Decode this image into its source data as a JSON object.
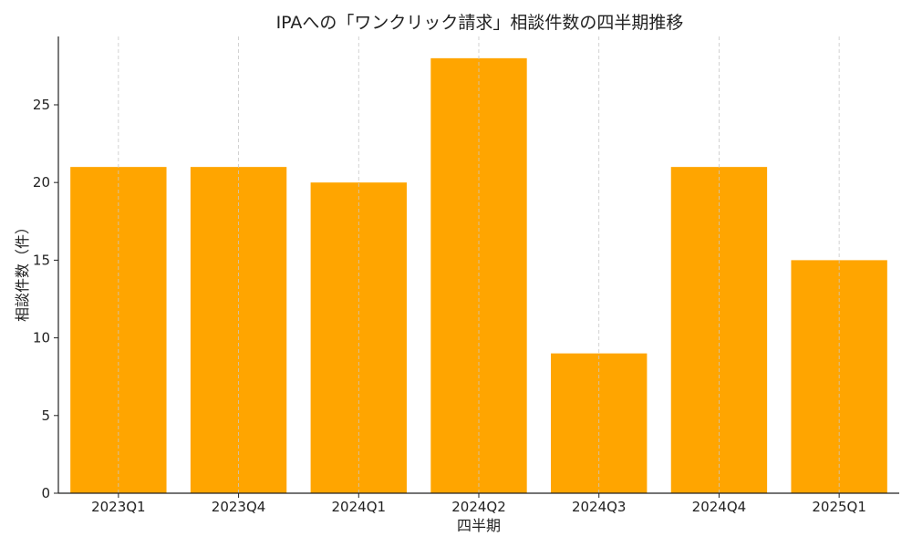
{
  "chart_data": {
    "type": "bar",
    "title": "IPAへの「ワンクリック請求」相談件数の四半期推移",
    "xlabel": "四半期",
    "ylabel": "相談件数（件）",
    "categories": [
      "2023Q1",
      "2023Q4",
      "2024Q1",
      "2024Q2",
      "2024Q3",
      "2024Q4",
      "2025Q1"
    ],
    "values": [
      21,
      21,
      20,
      28,
      9,
      21,
      15
    ],
    "ylim": [
      0,
      29.4
    ],
    "yticks": [
      0,
      5,
      10,
      15,
      20,
      25
    ],
    "grid": "x-dashed",
    "bar_color": "#FFA500"
  }
}
